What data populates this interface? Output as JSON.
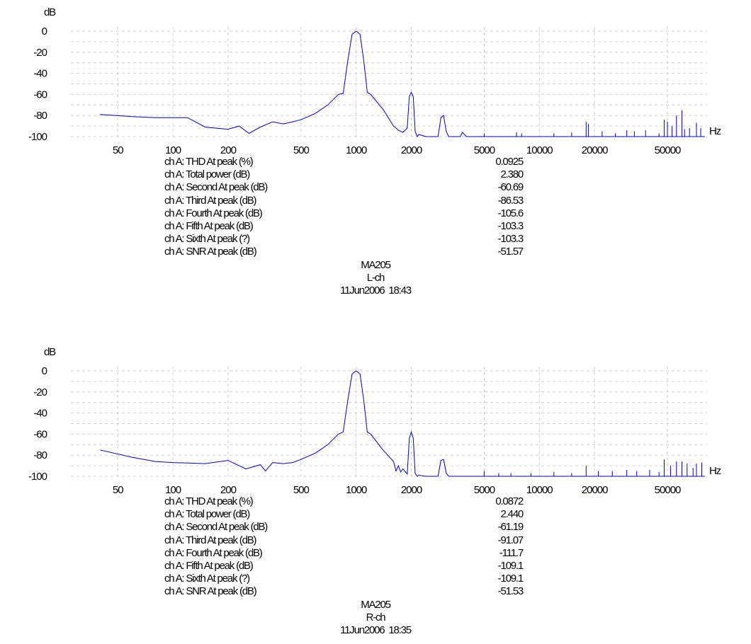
{
  "colors": {
    "trace": "#0000cc",
    "grid": "#cfcfcf",
    "text": "#000000"
  },
  "chart_data": [
    {
      "type": "line",
      "channel": "L-ch",
      "title": "",
      "ylabel": "dB",
      "xlabel": "Hz",
      "xscale": "log",
      "xlim": [
        40,
        80000
      ],
      "ylim": [
        -100,
        0
      ],
      "grid": true,
      "x_ticks": [
        50,
        100,
        200,
        500,
        1000,
        2000,
        5000,
        10000,
        20000,
        50000
      ],
      "x_tick_labels": [
        "50",
        "100",
        "200",
        "500",
        "1000",
        "2000",
        "5000",
        "10000",
        "20000",
        "50000"
      ],
      "y_ticks": [
        0,
        -20,
        -40,
        -60,
        -80,
        -100
      ],
      "y_tick_labels": [
        "0",
        "-20",
        "-40",
        "-60",
        "-80",
        "-100"
      ],
      "series": [
        {
          "x": [
            40,
            60,
            80,
            100,
            120,
            150,
            200,
            230,
            260,
            300,
            350,
            400,
            450,
            500,
            600,
            700,
            800,
            850,
            900,
            950,
            1000,
            1050,
            1100,
            1150,
            1200,
            1400,
            1600,
            1700,
            1800,
            1900,
            1950,
            2000,
            2050,
            2100,
            2150,
            2200,
            2400,
            2600,
            2800,
            2900,
            3000,
            3100,
            3200,
            3500,
            3700,
            3800,
            4000,
            5000,
            6000,
            8000,
            10000,
            20000,
            40000,
            80000
          ],
          "y": [
            -79,
            -81,
            -82,
            -82,
            -82,
            -91,
            -93,
            -90,
            -97,
            -91,
            -86,
            -88,
            -86,
            -84,
            -78,
            -70,
            -60,
            -59,
            -28,
            -3,
            0,
            -3,
            -28,
            -58,
            -60,
            -74,
            -90,
            -94,
            -96,
            -92,
            -62,
            -58,
            -62,
            -95,
            -100,
            -98,
            -100,
            -100,
            -100,
            -82,
            -80,
            -95,
            -100,
            -100,
            -100,
            -96,
            -100,
            -100,
            -100,
            -100,
            -100,
            -100,
            -100,
            -100
          ]
        }
      ],
      "spikes": [
        {
          "x": 5000,
          "y": -97
        },
        {
          "x": 7500,
          "y": -96
        },
        {
          "x": 8000,
          "y": -97
        },
        {
          "x": 12000,
          "y": -97
        },
        {
          "x": 15000,
          "y": -96
        },
        {
          "x": 18000,
          "y": -86
        },
        {
          "x": 18500,
          "y": -88
        },
        {
          "x": 22000,
          "y": -95
        },
        {
          "x": 26000,
          "y": -97
        },
        {
          "x": 30000,
          "y": -94
        },
        {
          "x": 33000,
          "y": -95
        },
        {
          "x": 38000,
          "y": -94
        },
        {
          "x": 45000,
          "y": -97
        },
        {
          "x": 48000,
          "y": -84
        },
        {
          "x": 50000,
          "y": -86
        },
        {
          "x": 53000,
          "y": -90
        },
        {
          "x": 56000,
          "y": -80
        },
        {
          "x": 60000,
          "y": -75
        },
        {
          "x": 62000,
          "y": -93
        },
        {
          "x": 66000,
          "y": -92
        },
        {
          "x": 72000,
          "y": -87
        },
        {
          "x": 76000,
          "y": -92
        }
      ],
      "measurements": [
        {
          "name": "ch A: THD At peak (%)",
          "value": "0.0925"
        },
        {
          "name": "ch A: Total power (dB)",
          "value": "2.380"
        },
        {
          "name": "ch A: Second At peak (dB)",
          "value": "-60.69"
        },
        {
          "name": "ch A: Third At peak (dB)",
          "value": "-86.53"
        },
        {
          "name": "ch A: Fourth At peak (dB)",
          "value": "-105.6"
        },
        {
          "name": "ch A: Fifth At peak (dB)",
          "value": "-103.3"
        },
        {
          "name": "ch A: Sixth At peak (?)",
          "value": "-103.3"
        },
        {
          "name": "ch A: SNR At peak (dB)",
          "value": "-51.57"
        }
      ],
      "caption": [
        "MA205",
        "L-ch",
        "11Jun2006  18:43"
      ]
    },
    {
      "type": "line",
      "channel": "R-ch",
      "title": "",
      "ylabel": "dB",
      "xlabel": "Hz",
      "xscale": "log",
      "xlim": [
        40,
        80000
      ],
      "ylim": [
        -100,
        0
      ],
      "grid": true,
      "x_ticks": [
        50,
        100,
        200,
        500,
        1000,
        2000,
        5000,
        10000,
        20000,
        50000
      ],
      "x_tick_labels": [
        "50",
        "100",
        "200",
        "500",
        "1000",
        "2000",
        "5000",
        "10000",
        "20000",
        "50000"
      ],
      "y_ticks": [
        0,
        -20,
        -40,
        -60,
        -80,
        -100
      ],
      "y_tick_labels": [
        "0",
        "-20",
        "-40",
        "-60",
        "-80",
        "-100"
      ],
      "series": [
        {
          "x": [
            40,
            60,
            80,
            100,
            150,
            200,
            250,
            300,
            320,
            350,
            400,
            450,
            500,
            600,
            700,
            800,
            850,
            900,
            950,
            1000,
            1050,
            1100,
            1150,
            1200,
            1400,
            1600,
            1650,
            1700,
            1750,
            1800,
            1900,
            1950,
            2000,
            2050,
            2100,
            2150,
            2200,
            2400,
            2800,
            2900,
            3000,
            3100,
            3200,
            4000,
            5000,
            6000,
            8000,
            10000,
            20000,
            40000,
            80000
          ],
          "y": [
            -75,
            -82,
            -86,
            -87,
            -88,
            -85,
            -93,
            -89,
            -95,
            -87,
            -88,
            -87,
            -84,
            -78,
            -70,
            -60,
            -58,
            -28,
            -3,
            0,
            -3,
            -28,
            -58,
            -60,
            -75,
            -86,
            -95,
            -90,
            -96,
            -93,
            -98,
            -64,
            -58,
            -64,
            -97,
            -100,
            -99,
            -100,
            -100,
            -85,
            -84,
            -97,
            -100,
            -100,
            -100,
            -100,
            -100,
            -100,
            -100,
            -100,
            -100
          ]
        }
      ],
      "spikes": [
        {
          "x": 5000,
          "y": -95
        },
        {
          "x": 6000,
          "y": -97
        },
        {
          "x": 7000,
          "y": -97
        },
        {
          "x": 9000,
          "y": -97
        },
        {
          "x": 12000,
          "y": -96
        },
        {
          "x": 15000,
          "y": -97
        },
        {
          "x": 18000,
          "y": -90
        },
        {
          "x": 21000,
          "y": -95
        },
        {
          "x": 25000,
          "y": -95
        },
        {
          "x": 30000,
          "y": -94
        },
        {
          "x": 34000,
          "y": -95
        },
        {
          "x": 40000,
          "y": -94
        },
        {
          "x": 45000,
          "y": -96
        },
        {
          "x": 48000,
          "y": -84
        },
        {
          "x": 52000,
          "y": -90
        },
        {
          "x": 56000,
          "y": -86
        },
        {
          "x": 60000,
          "y": -86
        },
        {
          "x": 64000,
          "y": -88
        },
        {
          "x": 69000,
          "y": -92
        },
        {
          "x": 72000,
          "y": -88
        },
        {
          "x": 77000,
          "y": -87
        }
      ],
      "measurements": [
        {
          "name": "ch A: THD At peak (%)",
          "value": "0.0872"
        },
        {
          "name": "ch A: Total power (dB)",
          "value": "2.440"
        },
        {
          "name": "ch A: Second At peak (dB)",
          "value": "-61.19"
        },
        {
          "name": "ch A: Third At peak (dB)",
          "value": "-91.07"
        },
        {
          "name": "ch A: Fourth At peak (dB)",
          "value": "-111.7"
        },
        {
          "name": "ch A: Fifth At peak (dB)",
          "value": "-109.1"
        },
        {
          "name": "ch A: Sixth At peak (?)",
          "value": "-109.1"
        },
        {
          "name": "ch A: SNR At peak (dB)",
          "value": "-51.53"
        }
      ],
      "caption": [
        "MA205",
        "R-ch",
        "11Jun2006  18:35"
      ]
    }
  ]
}
